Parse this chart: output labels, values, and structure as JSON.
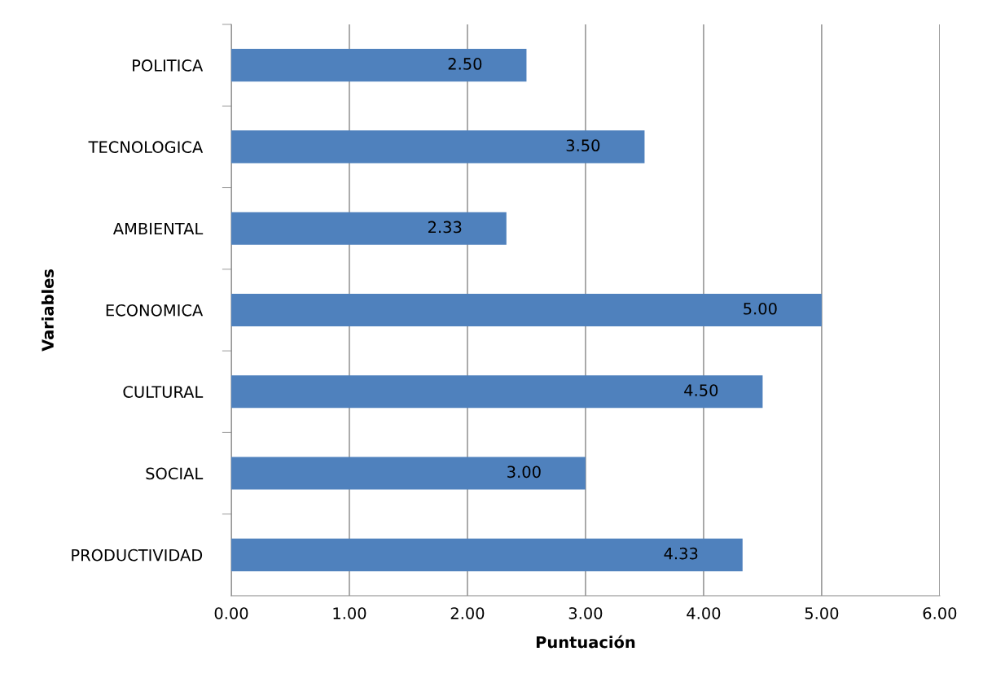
{
  "chart_data": {
    "type": "bar",
    "orientation": "horizontal",
    "xlabel": "Puntuación",
    "ylabel": "Variables",
    "categories": [
      "POLITICA",
      "TECNOLOGICA",
      "AMBIENTAL",
      "ECONOMICA",
      "CULTURAL",
      "SOCIAL",
      "PRODUCTIVIDAD"
    ],
    "values": [
      2.5,
      3.5,
      2.33,
      5.0,
      4.5,
      3.0,
      4.33
    ],
    "value_labels": [
      "2.50",
      "3.50",
      "2.33",
      "5.00",
      "4.50",
      "3.00",
      "4.33"
    ],
    "color": "#4f81bd",
    "xlim": [
      0,
      6
    ],
    "xticks": [
      {
        "value": 0,
        "label": "0.00"
      },
      {
        "value": 1,
        "label": "1.00"
      },
      {
        "value": 2,
        "label": "2.00"
      },
      {
        "value": 3,
        "label": "3.00"
      },
      {
        "value": 4,
        "label": "4.00"
      },
      {
        "value": 5,
        "label": "5.00"
      },
      {
        "value": 6,
        "label": "6.00"
      }
    ],
    "grid": "x",
    "legend": false
  }
}
